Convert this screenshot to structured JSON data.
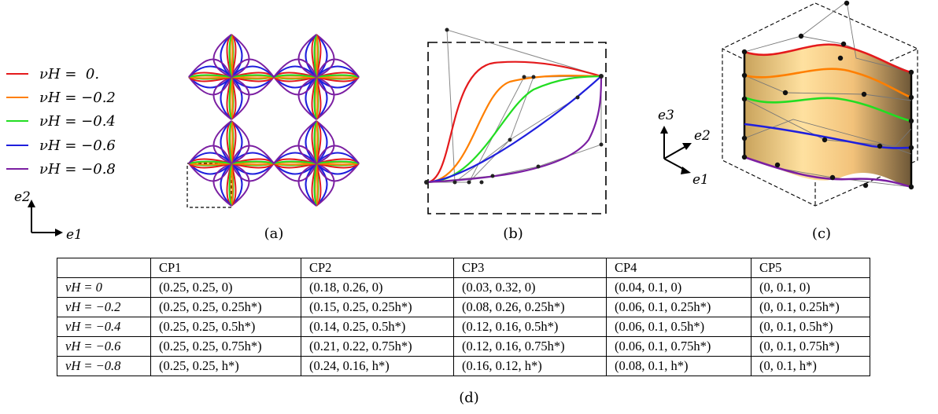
{
  "legend": [
    {
      "label": "νH =  0.",
      "color": "#e41a1c"
    },
    {
      "label": "νH = −0.2",
      "color": "#ff7f00"
    },
    {
      "label": "νH = −0.4",
      "color": "#22dd22"
    },
    {
      "label": "νH = −0.6",
      "color": "#1f1fdd"
    },
    {
      "label": "νH = −0.8",
      "color": "#7b1fa2"
    }
  ],
  "axes_2d": {
    "vertical": "e2",
    "horizontal": "e1"
  },
  "axes_3d": {
    "up": "e3",
    "right": "e2",
    "down": "e1"
  },
  "captions": {
    "a": "(a)",
    "b": "(b)",
    "c": "(c)",
    "d": "(d)"
  },
  "table": {
    "headers": [
      "",
      "CP1",
      "CP2",
      "CP3",
      "CP4",
      "CP5"
    ],
    "rows": [
      {
        "label": "νH = 0",
        "cells": [
          "(0.25, 0.25, 0)",
          "(0.18, 0.26, 0)",
          "(0.03, 0.32, 0)",
          "(0.04, 0.1, 0)",
          "(0, 0.1, 0)"
        ]
      },
      {
        "label": "νH = −0.2",
        "cells": [
          "(0.25, 0.25, 0.25h*)",
          "(0.15, 0.25, 0.25h*)",
          "(0.08, 0.26, 0.25h*)",
          "(0.06, 0.1, 0.25h*)",
          "(0, 0.1, 0.25h*)"
        ]
      },
      {
        "label": "νH = −0.4",
        "cells": [
          "(0.25, 0.25, 0.5h*)",
          "(0.14, 0.25, 0.5h*)",
          "(0.12, 0.16, 0.5h*)",
          "(0.06, 0.1, 0.5h*)",
          "(0, 0.1, 0.5h*)"
        ]
      },
      {
        "label": "νH = −0.6",
        "cells": [
          "(0.25, 0.25, 0.75h*)",
          "(0.21, 0.22, 0.75h*)",
          "(0.12, 0.16, 0.75h*)",
          "(0.06, 0.1, 0.75h*)",
          "(0, 0.1, 0.75h*)"
        ]
      },
      {
        "label": "νH = −0.8",
        "cells": [
          "(0.25, 0.25, h*)",
          "(0.24, 0.16, h*)",
          "(0.16, 0.12, h*)",
          "(0.08, 0.1, h*)",
          "(0, 0.1, h*)"
        ]
      }
    ]
  }
}
